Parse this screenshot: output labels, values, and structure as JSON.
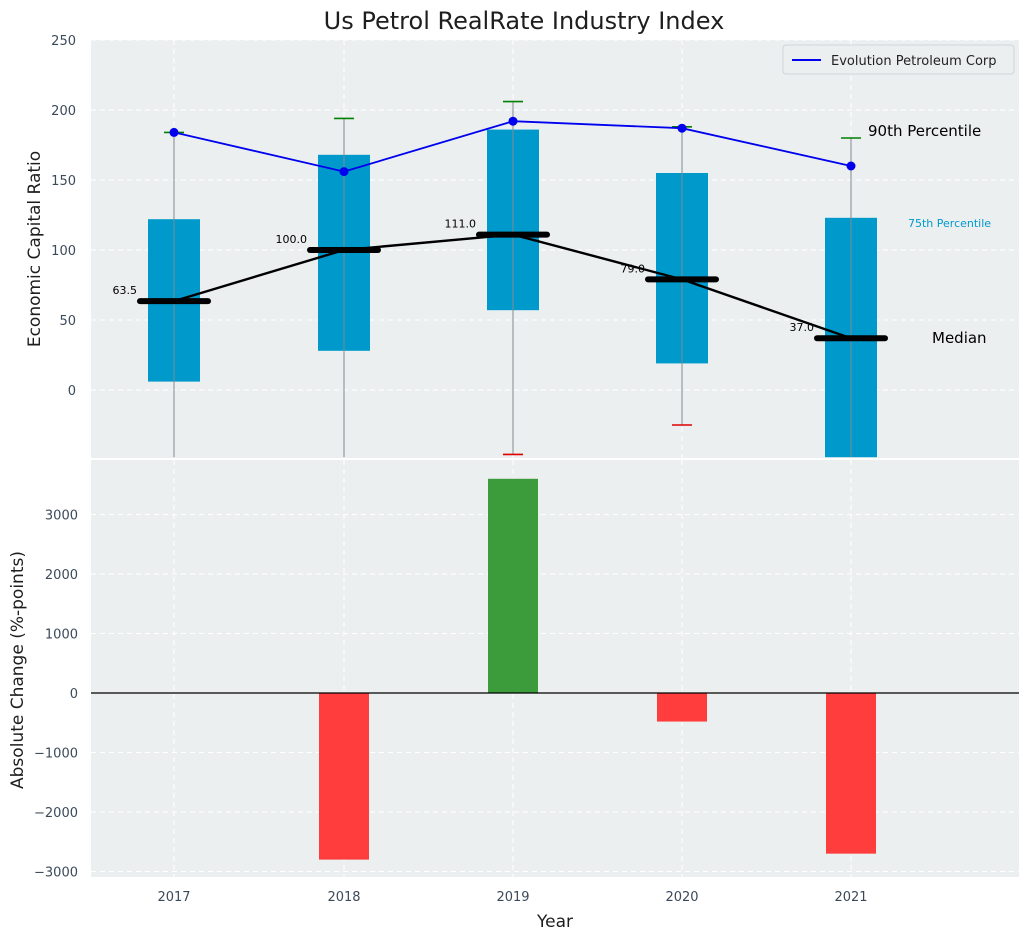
{
  "chart_data": [
    {
      "type": "box",
      "title": "Us Petrol RealRate Industry Index",
      "ylabel": "Economic Capital Ratio",
      "ylim": [
        -48,
        250
      ],
      "yticks": [
        0,
        50,
        100,
        150,
        200,
        250
      ],
      "categories": [
        "2017",
        "2018",
        "2019",
        "2020",
        "2021"
      ],
      "grid": true,
      "legend": {
        "placement": "top-right",
        "entries": [
          "Evolution Petroleum Corp"
        ]
      },
      "boxes": {
        "q1": [
          6,
          28,
          57,
          19,
          -48
        ],
        "q3": [
          122,
          168,
          186,
          155,
          123
        ],
        "median": [
          63.5,
          100.0,
          111.0,
          79.0,
          37.0
        ],
        "whisker_low": [
          -48,
          -48,
          -46,
          -25,
          -48
        ],
        "whisker_high": [
          184,
          194,
          206,
          188,
          180
        ],
        "median_labels": [
          "63.5",
          "100.0",
          "111.0",
          "79.0",
          "37.0"
        ],
        "box_color": "#0099cc",
        "high_cap_color": "#008000",
        "low_cap_color": "#e00000"
      },
      "series": [
        {
          "name": "Evolution Petroleum Corp",
          "values": [
            184,
            156,
            192,
            187,
            160
          ],
          "color": "#0000ee"
        }
      ],
      "annotations": [
        {
          "text": "90th Percentile",
          "color": "#000000"
        },
        {
          "text": "75th Percentile",
          "color": "#0099cc"
        },
        {
          "text": "Median",
          "color": "#000000"
        }
      ]
    },
    {
      "type": "bar",
      "xlabel": "Year",
      "ylabel": "Absolute Change (%-points)",
      "ylim": [
        -3100,
        3550
      ],
      "yticks": [
        -3000,
        -2000,
        -1000,
        0,
        1000,
        2000,
        3000
      ],
      "ytick_labels": [
        "−3000",
        "−2000",
        "−1000",
        "0",
        "1000",
        "2000",
        "3000"
      ],
      "categories": [
        "2017",
        "2018",
        "2019",
        "2020",
        "2021"
      ],
      "values": [
        0,
        -2800,
        3600,
        -480,
        -2700
      ],
      "positive_color": "#3c9c3c",
      "negative_color": "#ff3d3d",
      "grid": true
    }
  ]
}
